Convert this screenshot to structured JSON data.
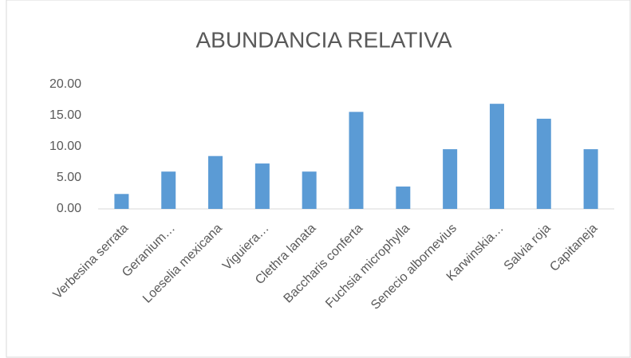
{
  "chart_data": {
    "type": "bar",
    "title": "ABUNDANCIA RELATIVA",
    "categories": [
      "Verbesina serrata",
      "Geranium…",
      "Loeselia mexicana",
      "Viguiera…",
      "Clethra lanata",
      "Baccharis conferta",
      "Fuchsia microphylla",
      "Senecio albornevius",
      "Karwinskia…",
      "Salvia roja",
      "Capitaneja"
    ],
    "values": [
      2.4,
      6.0,
      8.5,
      7.3,
      6.0,
      15.6,
      3.6,
      9.6,
      16.9,
      14.5,
      9.6
    ],
    "color": "#5b9bd5",
    "ylim": [
      0,
      20
    ],
    "yticks": [
      {
        "value": 0,
        "label": "0.00"
      },
      {
        "value": 5,
        "label": "5.00"
      },
      {
        "value": 10,
        "label": "10.00"
      },
      {
        "value": 15,
        "label": "15.00"
      },
      {
        "value": 20,
        "label": "20.00"
      }
    ],
    "grid": false
  }
}
